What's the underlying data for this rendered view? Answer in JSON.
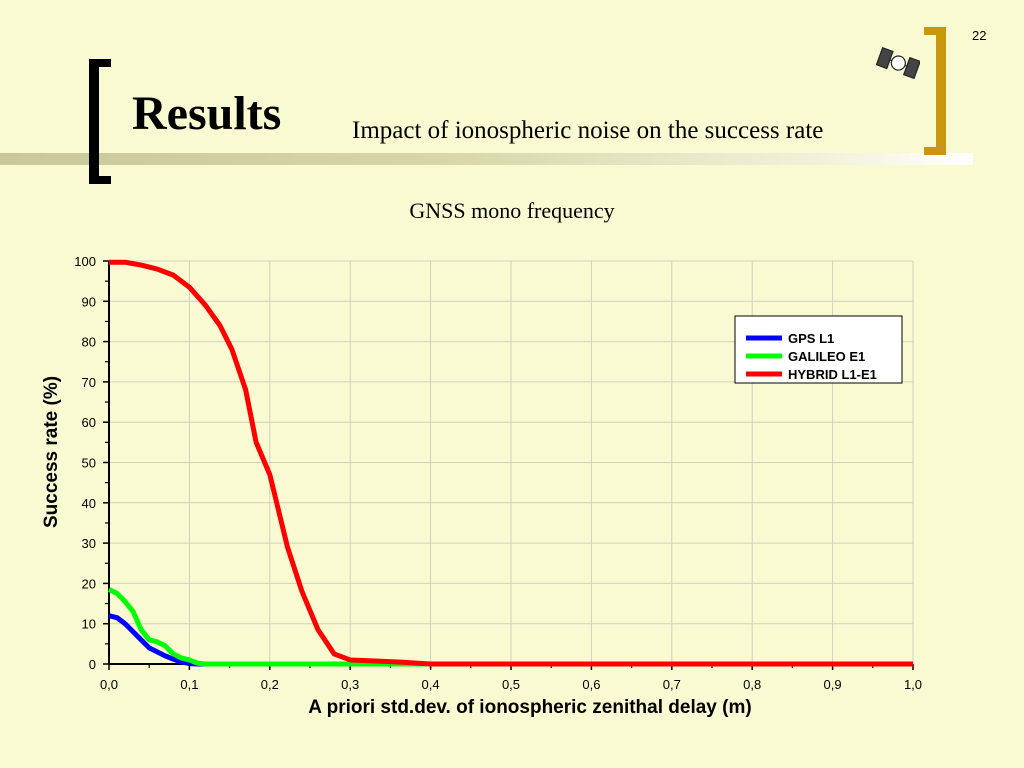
{
  "slide": {
    "page_number": "22",
    "title": "Results",
    "subtitle": "Impact of ionospheric noise on the success rate",
    "icon": "satellite-icon",
    "colors": {
      "background": "#fafad2",
      "left_bracket": "#000000",
      "right_bracket": "#c8960f"
    }
  },
  "chart_data": {
    "type": "line",
    "title": "GNSS mono frequency",
    "xlabel": "A priori std.dev. of ionospheric zenithal delay (m)",
    "ylabel": "Success rate (%)",
    "xlim": [
      0,
      1.0
    ],
    "ylim": [
      0,
      100
    ],
    "x_ticks": [
      "0,0",
      "0,1",
      "0,2",
      "0,3",
      "0,4",
      "0,5",
      "0,6",
      "0,7",
      "0,8",
      "0,9",
      "1,0"
    ],
    "y_ticks": [
      "0",
      "10",
      "20",
      "30",
      "40",
      "50",
      "60",
      "70",
      "80",
      "90",
      "100"
    ],
    "grid": true,
    "legend_placement": "top-right",
    "series": [
      {
        "name": "GPS L1",
        "color": "#0000ff",
        "x": [
          0,
          0.01,
          0.02,
          0.03,
          0.04,
          0.05,
          0.06,
          0.07,
          0.08,
          0.09,
          0.1,
          0.11,
          1.0
        ],
        "y": [
          12,
          11.5,
          10,
          8,
          6,
          4,
          3,
          2,
          1.2,
          0.5,
          0.1,
          0,
          0
        ]
      },
      {
        "name": "GALILEO E1",
        "color": "#00ff00",
        "x": [
          0,
          0.01,
          0.02,
          0.03,
          0.04,
          0.05,
          0.06,
          0.07,
          0.08,
          0.09,
          0.1,
          0.11,
          0.12,
          1.0
        ],
        "y": [
          18.5,
          17.5,
          15.5,
          13,
          8.5,
          6,
          5.5,
          4.5,
          2.5,
          1.5,
          1,
          0.2,
          0,
          0
        ]
      },
      {
        "name": "HYBRID L1-E1",
        "color": "#ff0000",
        "x": [
          0,
          0.02,
          0.04,
          0.06,
          0.08,
          0.1,
          0.12,
          0.138,
          0.153,
          0.17,
          0.183,
          0.2,
          0.222,
          0.24,
          0.26,
          0.28,
          0.3,
          0.36,
          0.4,
          1.0
        ],
        "y": [
          99.7,
          99.7,
          99,
          98,
          96.5,
          93.5,
          89,
          84,
          78,
          68,
          55,
          47,
          29,
          18,
          8.5,
          2.5,
          1,
          0.5,
          0,
          0
        ]
      }
    ]
  }
}
